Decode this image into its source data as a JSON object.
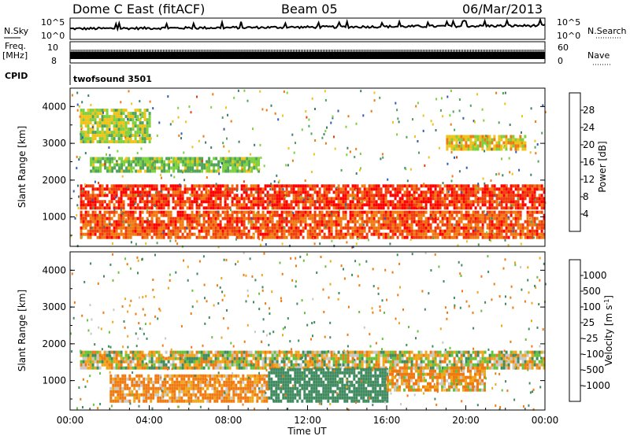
{
  "header": {
    "station": "Dome C East (fitACF)",
    "beam": "Beam 05",
    "date": "06/Mar/2013"
  },
  "panels": {
    "nsky": {
      "label": "N.Sky",
      "left_ticks": [
        "10^5",
        "10^0"
      ],
      "right_ticks": [
        "10^5",
        "10^0"
      ],
      "right_label": "N.Search"
    },
    "freq": {
      "label_line1": "Freq.",
      "label_line2": "[MHz]",
      "left_ticks": [
        "10",
        "8"
      ],
      "right_ticks": [
        "60",
        "0"
      ],
      "right_label": "Nave"
    },
    "cpid": {
      "label": "CPID",
      "value": "twofsound 3501"
    }
  },
  "colors": {
    "frame": "#000000",
    "power_scale": [
      "#1d1df5",
      "#2f5fb4",
      "#3f7f69",
      "#4fa35a",
      "#7fd03f",
      "#f0c21a",
      "#f07a12",
      "#ef3d0c",
      "#ff0000"
    ],
    "velocity_scale": [
      "#ff0000",
      "#ef3d0c",
      "#f07a12",
      "#f0a61a",
      "#c8c8c8",
      "#c8c8c8",
      "#67c23a",
      "#3f8a5f",
      "#2d5fa8",
      "#1e3fd0"
    ]
  },
  "chart_data": [
    {
      "type": "heatmap",
      "name": "power",
      "ylabel": "Slant Range [km]",
      "yticks": [
        "1000",
        "2000",
        "3000",
        "4000"
      ],
      "ylim": [
        200,
        4500
      ],
      "xlim": [
        "00:00",
        "24:00"
      ],
      "colorbar_label": "Power [dB]",
      "colorbar_ticks": [
        "4",
        "8",
        "12",
        "16",
        "20",
        "24",
        "28"
      ],
      "colorbar_range": [
        0,
        30
      ],
      "bands": [
        {
          "x": [
            0.5,
            24
          ],
          "y": [
            1200,
            1800
          ],
          "value": 26
        },
        {
          "x": [
            0.5,
            24
          ],
          "y": [
            400,
            1100
          ],
          "value": 24
        },
        {
          "x": [
            1,
            9.5
          ],
          "y": [
            2200,
            2600
          ],
          "value": 14
        },
        {
          "x": [
            0.5,
            4
          ],
          "y": [
            3000,
            3900
          ],
          "value": 16
        },
        {
          "x": [
            19,
            23
          ],
          "y": [
            2800,
            3200
          ],
          "value": 18
        }
      ]
    },
    {
      "type": "heatmap",
      "name": "velocity",
      "ylabel": "Slant Range [km]",
      "xlabel": "Time UT",
      "xticks": [
        "00:00",
        "04:00",
        "08:00",
        "12:00",
        "16:00",
        "20:00",
        "00:00"
      ],
      "yticks": [
        "1000",
        "2000",
        "3000",
        "4000"
      ],
      "ylim": [
        200,
        4500
      ],
      "colorbar_label": "Velocity [m s^-1]",
      "colorbar_ticks": [
        "-1000",
        "-500",
        "-100",
        "-25",
        "25",
        "100",
        "500",
        "1000"
      ],
      "bands": [
        {
          "x": [
            0.5,
            24
          ],
          "y": [
            1300,
            1800
          ],
          "value": 0
        },
        {
          "x": [
            2,
            10
          ],
          "y": [
            400,
            1100
          ],
          "value": -150
        },
        {
          "x": [
            10,
            16
          ],
          "y": [
            400,
            1300
          ],
          "value": 300
        },
        {
          "x": [
            16,
            21
          ],
          "y": [
            700,
            1300
          ],
          "value": -100
        }
      ]
    }
  ],
  "labels": {
    "power_axis": "Power [dB]",
    "velocity_axis": "Velocity [m s",
    "velocity_sup": "-1",
    "velocity_close": "]"
  }
}
